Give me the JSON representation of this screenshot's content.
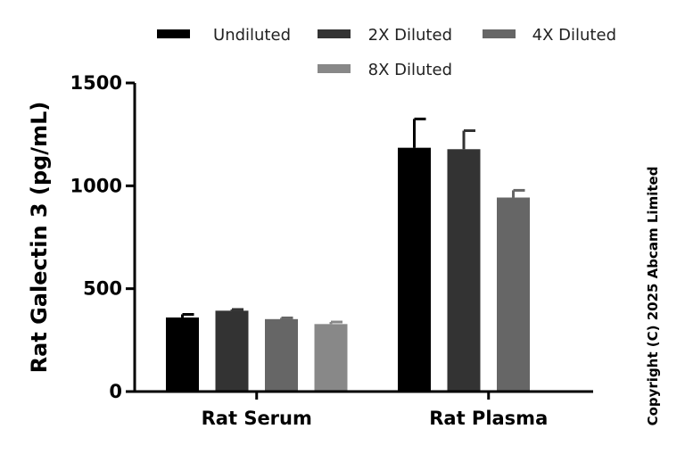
{
  "chart_data": {
    "type": "bar",
    "title": "",
    "xlabel": "",
    "ylabel": "Rat Galectin 3 (pg/mL)",
    "ylim": [
      0,
      1500
    ],
    "yticks": [
      0,
      500,
      1000,
      1500
    ],
    "categories": [
      "Rat Serum",
      "Rat Plasma"
    ],
    "series": [
      {
        "name": "Undiluted",
        "color": "#000000",
        "values": [
          360,
          1185
        ],
        "errors": [
          15,
          140
        ]
      },
      {
        "name": "2X Diluted",
        "color": "#333333",
        "values": [
          393,
          1178
        ],
        "errors": [
          6,
          90
        ]
      },
      {
        "name": "4X Diluted",
        "color": "#666666",
        "values": [
          352,
          943
        ],
        "errors": [
          6,
          35
        ]
      },
      {
        "name": "8X Diluted",
        "color": "#888888",
        "values": [
          328,
          null
        ],
        "errors": [
          10,
          null
        ]
      }
    ],
    "legend_position": "top",
    "grid": false
  },
  "copyright": "Copyright (C) 2025 Abcam Limited"
}
